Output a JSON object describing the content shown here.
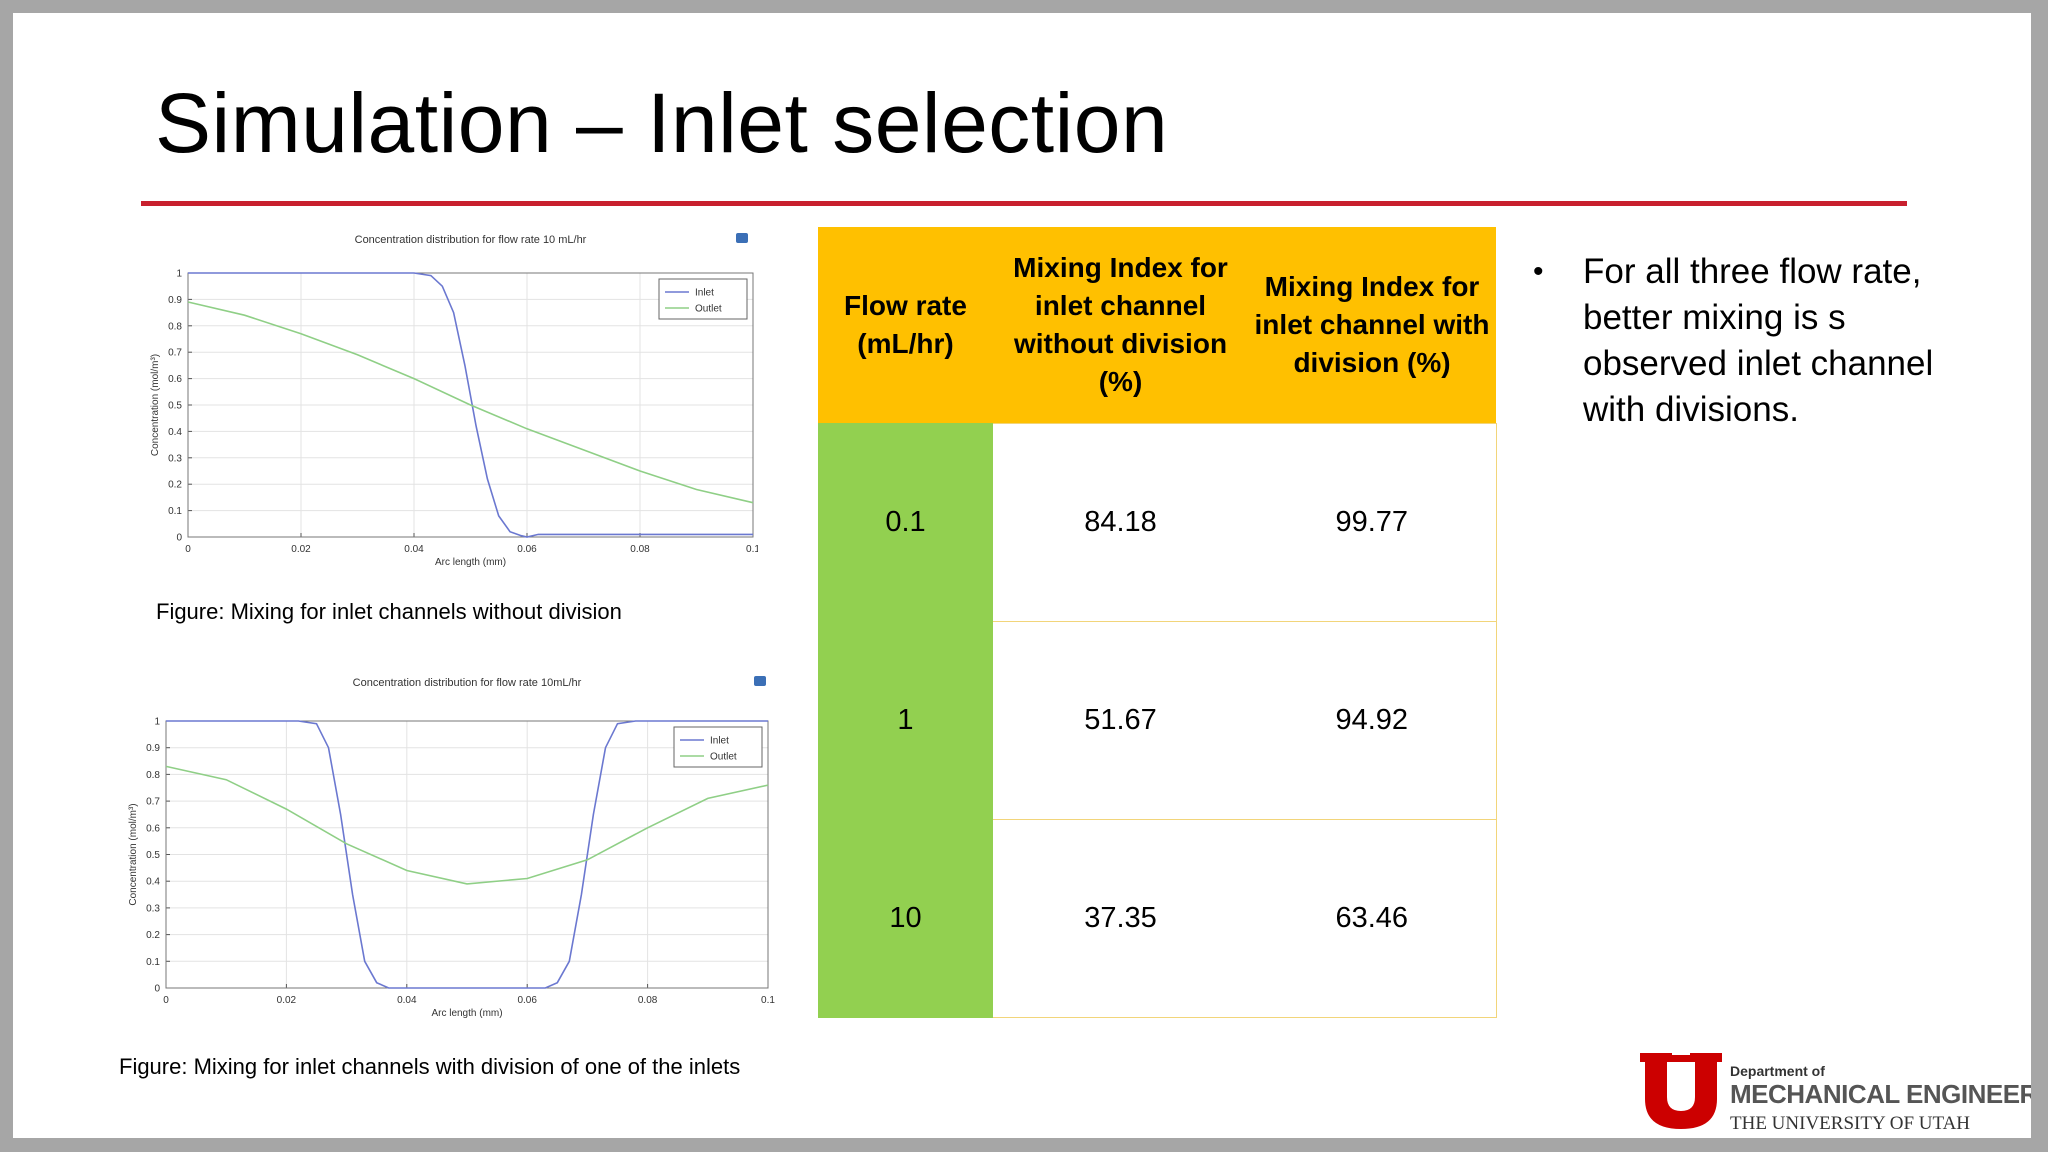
{
  "slide": {
    "title": "Simulation – Inlet selection"
  },
  "figures": [
    {
      "caption": "Figure: Mixing for inlet channels  without division",
      "chart_data": {
        "type": "line",
        "title": "Concentration distribution for flow rate 10 mL/hr",
        "xlabel": "Arc length (mm)",
        "ylabel": "Concentration (mol/m³)",
        "xlim": [
          0,
          0.1
        ],
        "ylim": [
          0,
          1
        ],
        "x_ticks": [
          "0",
          "0.02",
          "0.04",
          "0.06",
          "0.08",
          "0.1"
        ],
        "y_ticks": [
          "0",
          "0.1",
          "0.2",
          "0.3",
          "0.4",
          "0.5",
          "0.6",
          "0.7",
          "0.8",
          "0.9",
          "1"
        ],
        "grid": true,
        "legend": "top-right",
        "series": [
          {
            "name": "Inlet",
            "color": "#6b78d0",
            "x": [
              0,
              0.02,
              0.04,
              0.043,
              0.045,
              0.047,
              0.049,
              0.051,
              0.053,
              0.055,
              0.057,
              0.059,
              0.06,
              0.062,
              0.08,
              0.1
            ],
            "y": [
              1,
              1,
              1,
              0.99,
              0.95,
              0.85,
              0.65,
              0.42,
              0.22,
              0.08,
              0.02,
              0.005,
              0,
              0.01,
              0.01,
              0.01
            ]
          },
          {
            "name": "Outlet",
            "color": "#8fcf86",
            "x": [
              0,
              0.01,
              0.02,
              0.03,
              0.04,
              0.05,
              0.06,
              0.07,
              0.08,
              0.09,
              0.1
            ],
            "y": [
              0.89,
              0.84,
              0.77,
              0.69,
              0.6,
              0.5,
              0.41,
              0.33,
              0.25,
              0.18,
              0.13
            ]
          }
        ]
      }
    },
    {
      "caption": "Figure: Mixing for inlet channels with division of one of the inlets",
      "chart_data": {
        "type": "line",
        "title": "Concentration distribution for flow rate 10mL/hr",
        "xlabel": "Arc length (mm)",
        "ylabel": "Concentration (mol/m³)",
        "xlim": [
          0,
          0.1
        ],
        "ylim": [
          0,
          1
        ],
        "x_ticks": [
          "0",
          "0.02",
          "0.04",
          "0.06",
          "0.08",
          "0.1"
        ],
        "y_ticks": [
          "0",
          "0.1",
          "0.2",
          "0.3",
          "0.4",
          "0.5",
          "0.6",
          "0.7",
          "0.8",
          "0.9",
          "1"
        ],
        "grid": true,
        "legend": "top-right",
        "series": [
          {
            "name": "Inlet",
            "color": "#6b78d0",
            "x": [
              0,
              0.022,
              0.025,
              0.027,
              0.029,
              0.031,
              0.033,
              0.035,
              0.037,
              0.05,
              0.063,
              0.065,
              0.067,
              0.069,
              0.071,
              0.073,
              0.075,
              0.078,
              0.1
            ],
            "y": [
              1,
              1,
              0.99,
              0.9,
              0.65,
              0.35,
              0.1,
              0.02,
              0,
              0,
              0,
              0.02,
              0.1,
              0.35,
              0.65,
              0.9,
              0.99,
              1,
              1
            ]
          },
          {
            "name": "Outlet",
            "color": "#8fcf86",
            "x": [
              0,
              0.01,
              0.02,
              0.03,
              0.04,
              0.05,
              0.06,
              0.07,
              0.08,
              0.09,
              0.1
            ],
            "y": [
              0.83,
              0.78,
              0.67,
              0.54,
              0.44,
              0.39,
              0.41,
              0.48,
              0.6,
              0.71,
              0.76
            ]
          }
        ]
      }
    }
  ],
  "table": {
    "headers": [
      "Flow rate (mL/hr)",
      "Mixing Index for inlet channel without division (%)",
      "Mixing Index for inlet channel with division (%)"
    ],
    "rows": [
      [
        "0.1",
        "84.18",
        "99.77"
      ],
      [
        "1",
        "51.67",
        "94.92"
      ],
      [
        "10",
        "37.35",
        "63.46"
      ]
    ]
  },
  "bullets": [
    "For all three flow rate, better mixing is s observed inlet channel with divisions."
  ],
  "logo": {
    "department_of": "Department of",
    "department": "MECHANICAL ENGINEERING",
    "university": "THE UNIVERSITY OF UTAH",
    "colors": {
      "red": "#cc0000"
    }
  },
  "colors": {
    "title_rule": "#c8202e",
    "table_header": "#ffc000",
    "table_first_col": "#92d050"
  }
}
